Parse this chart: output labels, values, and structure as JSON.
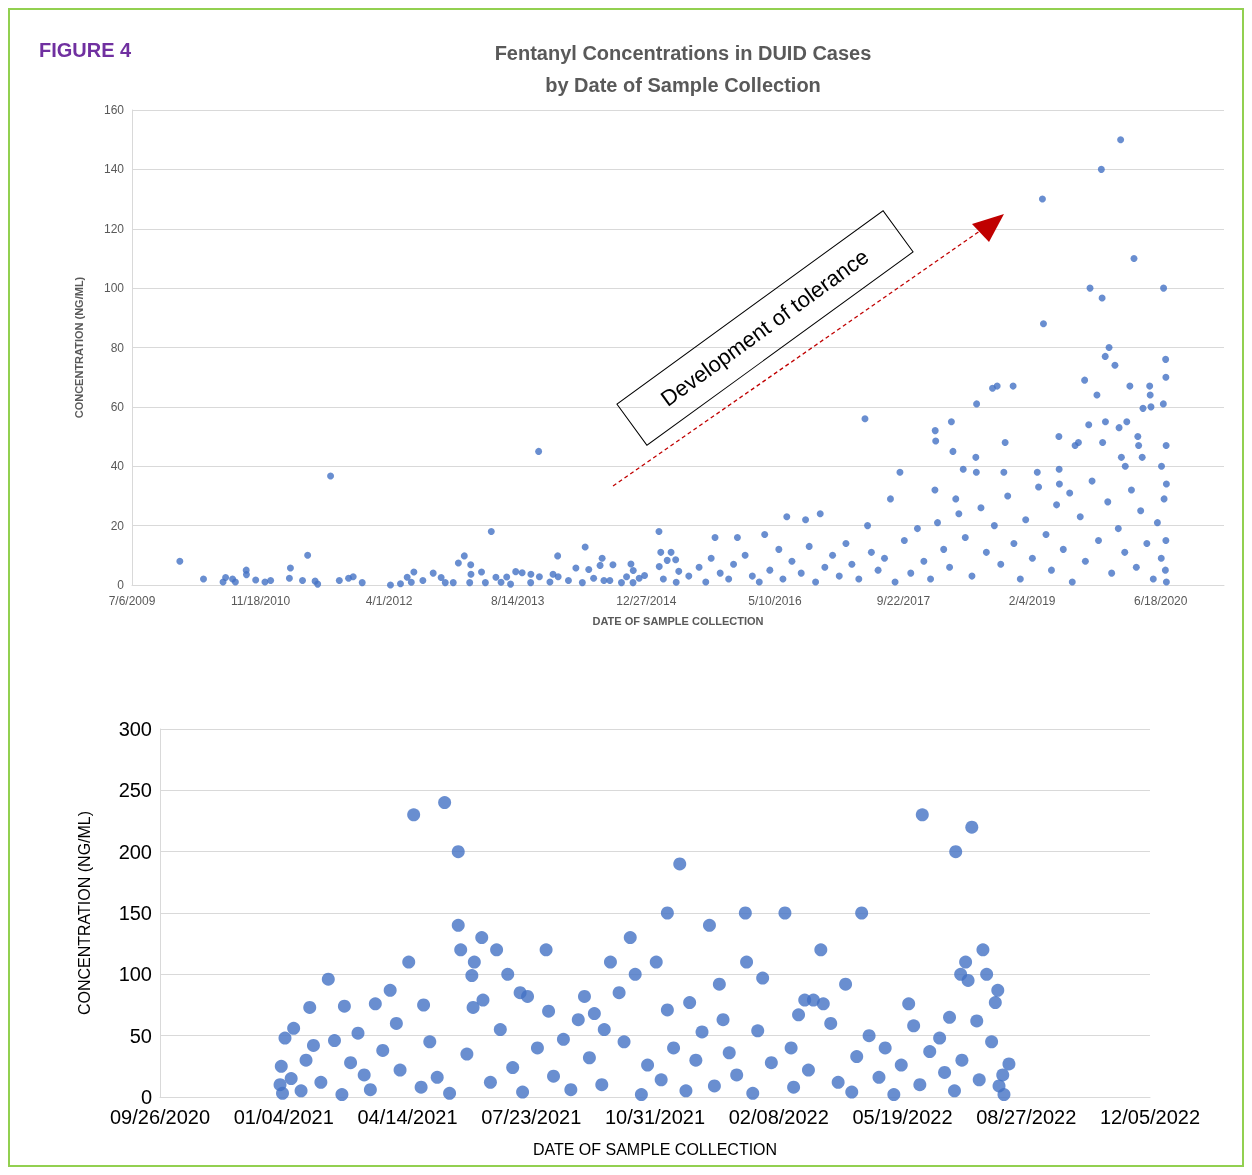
{
  "chart_data": [
    {
      "type": "scatter",
      "title": "Fentanyl Concentrations in DUID Cases\nby Date of Sample Collection",
      "xlabel": "DATE OF SAMPLE COLLECTION",
      "ylabel": "CONCENTRATION (NG/ML)",
      "annotations": [
        "FIGURE 4",
        "Development of tolerance"
      ],
      "color": "#4472c4",
      "marker": "circle",
      "grid": "y",
      "xlim": [
        "2009-07-06",
        "2021-02-19"
      ],
      "xticks": [
        {
          "value": "2009-07-06",
          "label": "7/6/2009"
        },
        {
          "value": "2010-11-18",
          "label": "11/18/2010"
        },
        {
          "value": "2012-04-01",
          "label": "4/1/2012"
        },
        {
          "value": "2013-08-14",
          "label": "8/14/2013"
        },
        {
          "value": "2014-12-27",
          "label": "12/27/2014"
        },
        {
          "value": "2016-05-10",
          "label": "5/10/2016"
        },
        {
          "value": "2017-09-22",
          "label": "9/22/2017"
        },
        {
          "value": "2019-02-04",
          "label": "2/4/2019"
        },
        {
          "value": "2020-06-18",
          "label": "6/18/2020"
        }
      ],
      "ylim": [
        0,
        160
      ],
      "yticks": [
        0,
        20,
        40,
        60,
        80,
        100,
        120,
        140,
        160
      ],
      "x": [
        "2010-01-08",
        "2010-04-10",
        "2010-06-25",
        "2010-07-05",
        "2010-08-01",
        "2010-08-12",
        "2010-09-23",
        "2010-09-24",
        "2010-10-30",
        "2010-12-05",
        "2010-12-27",
        "2011-03-10",
        "2011-03-14",
        "2011-04-30",
        "2011-05-20",
        "2011-06-18",
        "2011-06-28",
        "2011-08-17",
        "2011-09-20",
        "2011-10-26",
        "2011-11-13",
        "2011-12-18",
        "2012-04-06",
        "2012-05-15",
        "2012-06-10",
        "2012-06-26",
        "2012-07-06",
        "2012-08-10",
        "2012-09-19",
        "2012-10-20",
        "2012-11-05",
        "2012-12-06",
        "2012-12-26",
        "2013-01-18",
        "2013-02-08",
        "2013-02-12",
        "2013-02-13",
        "2013-03-26",
        "2013-04-10",
        "2013-05-03",
        "2013-05-21",
        "2013-06-10",
        "2013-07-02",
        "2013-07-17",
        "2013-08-06",
        "2013-08-31",
        "2013-10-03",
        "2013-10-04",
        "2013-11-03",
        "2013-11-06",
        "2013-12-17",
        "2013-12-29",
        "2014-01-16",
        "2014-01-18",
        "2014-02-27",
        "2014-03-28",
        "2014-04-22",
        "2014-05-03",
        "2014-05-17",
        "2014-06-05",
        "2014-06-30",
        "2014-07-08",
        "2014-07-15",
        "2014-08-07",
        "2014-08-19",
        "2014-09-21",
        "2014-10-11",
        "2014-10-28",
        "2014-11-06",
        "2014-11-05",
        "2014-11-29",
        "2014-12-20",
        "2015-02-14",
        "2015-02-15",
        "2015-02-21",
        "2015-03-03",
        "2015-03-18",
        "2015-04-02",
        "2015-04-20",
        "2015-05-02",
        "2015-04-22",
        "2020-01-14",
        "2019-10-31",
        "2019-03-16",
        "2020-03-06",
        "2019-09-17",
        "2020-06-29",
        "2019-11-03",
        "2019-03-20",
        "2019-11-30",
        "2019-11-15",
        "2020-07-07",
        "2019-12-23",
        "2019-08-27",
        "2020-07-08",
        "2018-09-03",
        "2018-09-21",
        "2018-11-22",
        "2020-02-19",
        "2020-05-06",
        "2019-10-14",
        "2020-05-08",
        "2018-07-03",
        "2020-06-28",
        "2020-04-10",
        "2020-05-11",
        "2017-04-25",
        "2018-03-27",
        "2018-01-23",
        "2018-01-25",
        "2019-09-12",
        "2019-11-16",
        "2020-02-07",
        "2020-01-08",
        "2018-10-22",
        "2019-05-19",
        "2019-07-21",
        "2019-08-03",
        "2019-11-05",
        "2020-03-21",
        "2020-03-24",
        "2020-07-09",
        "2018-04-02",
        "2018-06-30",
        "2018-07-02",
        "2017-09-08",
        "2018-05-12",
        "2017-08-02",
        "2018-01-22",
        "2020-01-17",
        "2020-02-01",
        "2020-04-07",
        "2020-06-21",
        "2019-05-20",
        "2019-02-24",
        "2018-10-17",
        "2020-07-10",
        "2016-06-25",
        "2016-09-06",
        "2016-11-02",
        "2017-05-05",
        "2015-09-20",
        "2015-12-16",
        "2016-03-31",
        "2018-04-13",
        "2019-05-21",
        "2015-06-10",
        "2015-07-20",
        "2015-08-15",
        "2015-09-05",
        "2015-10-10",
        "2015-11-12",
        "2015-12-01",
        "2016-01-15",
        "2016-02-12",
        "2016-03-10",
        "2016-04-20",
        "2016-05-25",
        "2016-06-10",
        "2016-07-15",
        "2016-08-20",
        "2016-09-20",
        "2016-10-15",
        "2016-11-20",
        "2016-12-20",
        "2017-01-15",
        "2017-02-10",
        "2017-03-05",
        "2017-04-01",
        "2017-05-20",
        "2017-06-15",
        "2017-07-10",
        "2017-08-20",
        "2017-09-25",
        "2017-10-20",
        "2017-11-15",
        "2017-12-10",
        "2018-01-05",
        "2018-02-01",
        "2018-02-25",
        "2018-03-20",
        "2018-04-25",
        "2018-05-20",
        "2018-06-15",
        "2018-07-20",
        "2018-08-10",
        "2018-09-10",
        "2018-10-05",
        "2018-11-01",
        "2018-11-25",
        "2018-12-20",
        "2019-01-10",
        "2019-02-05",
        "2019-03-01",
        "2019-03-30",
        "2019-04-20",
        "2019-05-10",
        "2019-06-05",
        "2019-06-30",
        "2019-07-10",
        "2019-08-10",
        "2019-08-30",
        "2019-09-25",
        "2019-10-20",
        "2019-11-25",
        "2019-12-10",
        "2020-01-05",
        "2020-01-30",
        "2020-02-25",
        "2020-03-15",
        "2020-04-01",
        "2020-04-25",
        "2020-05-20",
        "2020-06-05",
        "2020-06-20",
        "2020-07-01",
        "2020-07-10",
        "2020-07-08",
        "2020-07-06"
      ],
      "values": [
        8,
        2,
        1,
        2.5,
        2,
        1,
        5,
        3.5,
        1.7,
        1,
        1.5,
        2.3,
        5.7,
        1.5,
        10,
        1.3,
        0.3,
        36.7,
        1.5,
        2.3,
        2.8,
        0.8,
        0,
        0.4,
        2.6,
        0.9,
        4.4,
        1.5,
        4,
        2.5,
        0.8,
        0.8,
        7.4,
        9.8,
        0.8,
        6.8,
        3.6,
        4.4,
        0.8,
        18,
        2.6,
        0.9,
        2.7,
        0.3,
        4.5,
        4.1,
        0.8,
        3.6,
        45,
        2.8,
        1,
        3.6,
        9.8,
        2.8,
        1.5,
        5.7,
        0.8,
        12.8,
        5.2,
        2.3,
        6.6,
        9,
        1.5,
        1.5,
        6.8,
        0.8,
        2.8,
        7.1,
        4.9,
        0.8,
        2.3,
        3.2,
        18,
        6.2,
        11,
        2,
        8.3,
        11,
        8.5,
        4.6,
        0.9,
        150,
        140,
        130,
        110,
        100,
        100,
        96.7,
        88,
        80,
        77,
        76,
        74,
        69,
        70,
        66.3,
        67,
        67,
        67,
        67,
        64,
        64,
        61,
        61,
        59.5,
        60,
        56,
        55,
        52,
        48.5,
        54,
        55,
        55,
        53,
        48,
        50,
        47,
        48,
        48,
        50,
        47,
        47,
        45,
        43,
        38,
        38,
        39,
        29,
        32,
        43,
        40,
        43,
        40,
        39,
        38,
        38,
        34,
        23,
        22,
        24,
        20,
        16,
        16,
        17,
        29,
        34,
        3,
        6,
        1,
        9,
        4,
        2,
        7,
        10,
        3,
        1,
        5,
        12,
        2,
        8,
        4,
        13,
        1,
        6,
        10,
        3,
        14,
        7,
        2,
        11,
        5,
        9,
        1,
        15,
        4,
        19,
        8,
        2,
        21,
        12,
        6,
        24,
        16,
        3,
        26,
        11,
        20,
        7,
        30,
        14,
        2,
        22,
        9,
        33,
        17,
        5,
        27,
        12,
        31,
        1,
        23,
        8,
        35,
        15,
        28,
        4,
        19,
        11,
        32,
        6,
        25,
        14,
        2,
        21,
        9,
        29,
        1,
        15,
        5
      ]
    },
    {
      "type": "scatter",
      "xlabel": "DATE OF SAMPLE COLLECTION",
      "ylabel": "CONCENTRATION (NG/ML)",
      "color": "#4472c4",
      "marker": "circle",
      "grid": "y",
      "xlim": [
        "2020-09-26",
        "2022-12-05"
      ],
      "xticks": [
        {
          "value": "2020-09-26",
          "label": "09/26/2020"
        },
        {
          "value": "2021-01-04",
          "label": "01/04/2021"
        },
        {
          "value": "2021-04-14",
          "label": "04/14/2021"
        },
        {
          "value": "2021-07-23",
          "label": "07/23/2021"
        },
        {
          "value": "2021-10-31",
          "label": "10/31/2021"
        },
        {
          "value": "2022-02-08",
          "label": "02/08/2022"
        },
        {
          "value": "2022-05-19",
          "label": "05/19/2022"
        },
        {
          "value": "2022-08-27",
          "label": "08/27/2022"
        },
        {
          "value": "2022-12-05",
          "label": "12/05/2022"
        }
      ],
      "ylim": [
        0,
        300
      ],
      "yticks": [
        0,
        50,
        100,
        150,
        200,
        250,
        300
      ],
      "x": [
        "2021-04-19",
        "2021-05-14",
        "2021-05-25",
        "2021-05-25",
        "2021-05-27",
        "2021-06-07",
        "2021-06-05",
        "2021-06-13",
        "2021-06-25",
        "2021-07-04",
        "2021-08-04",
        "2021-04-15",
        "2021-02-09",
        "2021-03-31",
        "2021-03-19",
        "2021-04-27",
        "2021-01-25",
        "2021-02-22",
        "2021-07-14",
        "2021-07-20",
        "2021-06-14",
        "2021-06-06",
        "2021-08-06",
        "2021-09-04",
        "2021-08-30",
        "2021-09-12",
        "2021-09-25",
        "2021-10-02",
        "2021-10-11",
        "2021-10-15",
        "2021-11-01",
        "2021-11-10",
        "2021-11-20",
        "2021-11-10",
        "2021-11-28",
        "2021-12-14",
        "2021-12-22",
        "2021-12-25",
        "2022-01-12",
        "2022-01-13",
        "2022-01-26",
        "2022-02-13",
        "2022-03-14",
        "2022-03-01",
        "2022-03-08",
        "2022-03-16",
        "2022-02-24",
        "2022-04-03",
        "2022-04-16",
        "2022-05-24",
        "2022-06-04",
        "2022-07-01",
        "2022-07-14",
        "2022-07-23",
        "2022-07-09",
        "2022-07-05",
        "2022-07-11",
        "2022-07-26",
        "2022-08-04",
        "2022-08-02",
        "2022-07-18",
        "2022-06-26",
        "2022-08-13",
        "2022-08-09",
        "2021-01-01",
        "2021-01-02",
        "2021-01-03",
        "2021-01-05",
        "2021-01-10",
        "2021-01-12",
        "2021-01-18",
        "2021-01-22",
        "2021-01-28",
        "2021-02-03",
        "2021-02-14",
        "2021-02-20",
        "2021-02-27",
        "2021-03-05",
        "2021-03-10",
        "2021-03-15",
        "2021-03-25",
        "2021-04-05",
        "2021-04-08",
        "2021-04-25",
        "2021-05-02",
        "2021-05-08",
        "2021-05-18",
        "2021-06-01",
        "2021-06-20",
        "2021-06-28",
        "2021-07-08",
        "2021-07-16",
        "2021-07-28",
        "2021-08-10",
        "2021-08-18",
        "2021-08-24",
        "2021-09-08",
        "2021-09-18",
        "2021-09-20",
        "2021-10-06",
        "2021-10-20",
        "2021-10-25",
        "2021-11-05",
        "2021-11-15",
        "2021-11-25",
        "2021-12-03",
        "2021-12-08",
        "2021-12-18",
        "2021-12-30",
        "2022-01-05",
        "2022-01-18",
        "2022-01-22",
        "2022-02-02",
        "2022-02-18",
        "2022-02-20",
        "2022-03-04",
        "2022-03-22",
        "2022-03-28",
        "2022-04-08",
        "2022-04-12",
        "2022-04-22",
        "2022-04-30",
        "2022-05-05",
        "2022-05-12",
        "2022-05-18",
        "2022-05-28",
        "2022-06-02",
        "2022-06-10",
        "2022-06-18",
        "2022-06-22",
        "2022-06-30",
        "2022-07-06",
        "2022-07-20",
        "2022-07-30",
        "2022-08-05",
        "2022-08-08"
      ],
      "values": [
        230,
        240,
        200,
        140,
        120,
        110,
        99,
        130,
        120,
        100,
        120,
        110,
        96,
        87,
        76,
        75,
        73,
        74,
        85,
        82,
        79,
        73,
        70,
        82,
        63,
        68,
        110,
        85,
        130,
        100,
        110,
        150,
        190,
        71,
        77,
        140,
        92,
        63,
        150,
        110,
        97,
        150,
        120,
        79,
        79,
        76,
        67,
        92,
        150,
        76,
        230,
        200,
        220,
        120,
        110,
        100,
        95,
        100,
        87,
        77,
        62,
        65,
        27,
        2,
        10,
        25,
        3,
        48,
        15,
        56,
        5,
        30,
        42,
        12,
        46,
        2,
        28,
        52,
        18,
        6,
        38,
        60,
        22,
        8,
        45,
        16,
        3,
        35,
        12,
        55,
        24,
        4,
        40,
        17,
        47,
        6,
        32,
        10,
        55,
        45,
        2,
        26,
        14,
        40,
        5,
        30,
        53,
        9,
        36,
        18,
        3,
        54,
        28,
        40,
        8,
        22,
        60,
        12,
        4,
        33,
        50,
        16,
        40,
        2,
        26,
        58,
        10,
        37,
        48,
        20,
        5,
        30,
        14,
        45,
        9,
        18
      ]
    }
  ]
}
